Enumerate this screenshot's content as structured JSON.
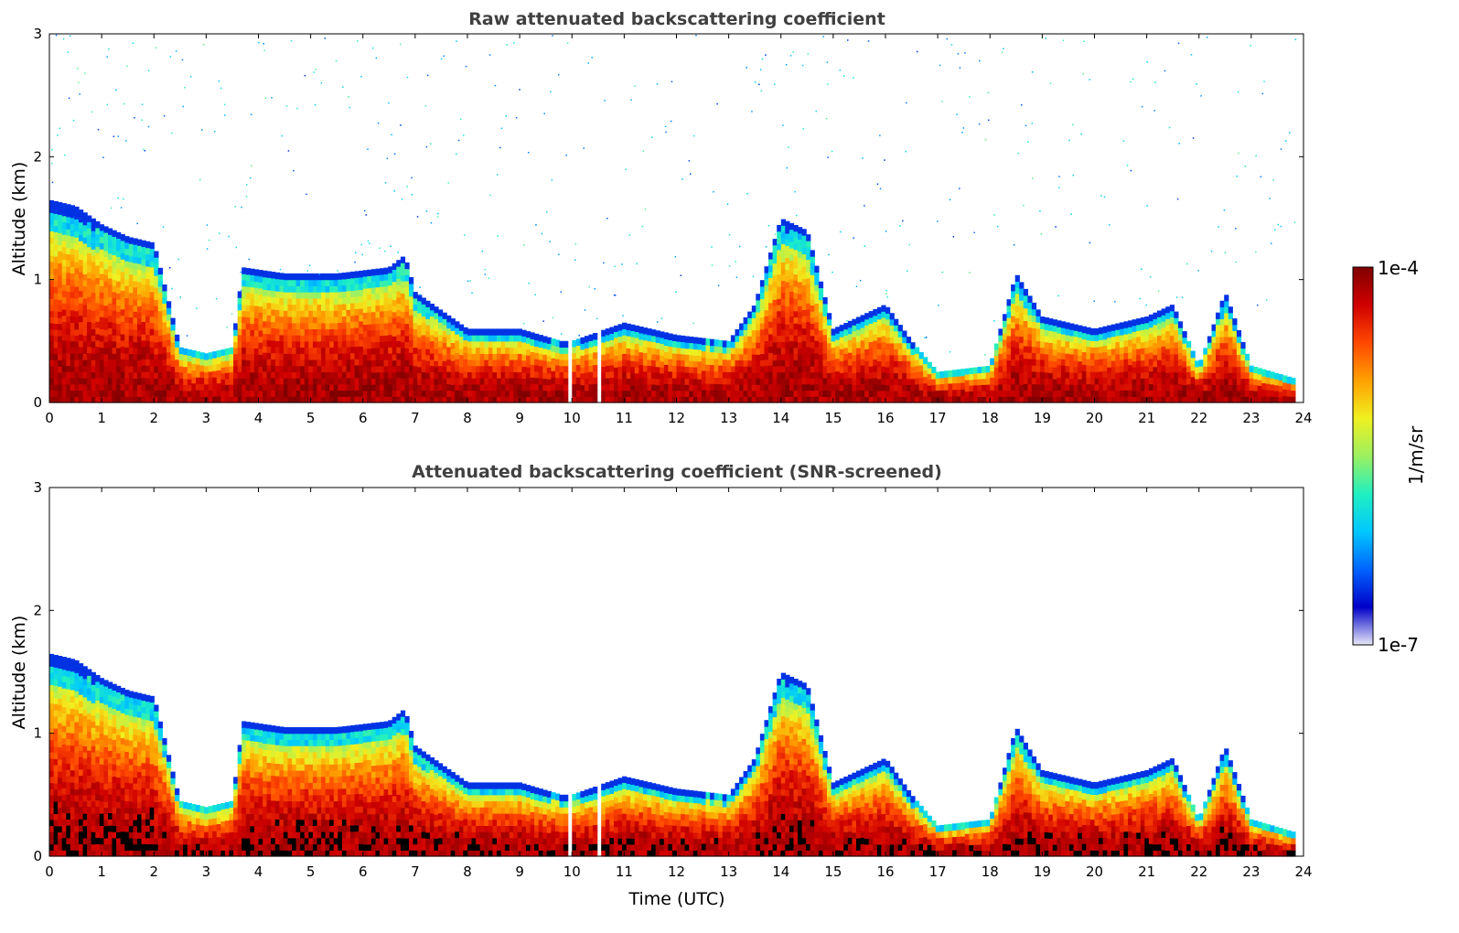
{
  "chart_data": [
    {
      "type": "heatmap",
      "title": "Raw attenuated backscattering coefficient",
      "xlabel": "",
      "ylabel": "Altitude (km)",
      "xlim": [
        0,
        24
      ],
      "ylim": [
        0,
        3
      ],
      "xticks": [
        0,
        1,
        2,
        3,
        4,
        5,
        6,
        7,
        8,
        9,
        10,
        11,
        12,
        13,
        14,
        15,
        16,
        17,
        18,
        19,
        20,
        21,
        22,
        23,
        24
      ],
      "yticks": [
        0,
        1,
        2,
        3
      ],
      "screened": false,
      "layer_tops_km": {
        "times": [
          0,
          0.5,
          1,
          1.5,
          2,
          2.5,
          3,
          3.5,
          3.7,
          4.5,
          5.5,
          6.5,
          6.8,
          7,
          8,
          9,
          9.8,
          10,
          11,
          12,
          13,
          13.5,
          14,
          14.5,
          15,
          15.5,
          16,
          16.5,
          17,
          18,
          18.5,
          19,
          20,
          21,
          21.5,
          22,
          22.5,
          23,
          23.8
        ],
        "tops": [
          1.65,
          1.6,
          1.45,
          1.35,
          1.3,
          0.45,
          0.4,
          0.45,
          1.1,
          1.05,
          1.05,
          1.1,
          1.2,
          0.9,
          0.6,
          0.6,
          0.5,
          0.5,
          0.65,
          0.55,
          0.5,
          0.8,
          1.5,
          1.4,
          0.6,
          0.7,
          0.8,
          0.5,
          0.25,
          0.3,
          1.05,
          0.7,
          0.6,
          0.7,
          0.8,
          0.3,
          0.9,
          0.3,
          0.2
        ]
      }
    },
    {
      "type": "heatmap",
      "title": "Attenuated backscattering coefficient (SNR-screened)",
      "xlabel": "Time (UTC)",
      "ylabel": "Altitude (km)",
      "xlim": [
        0,
        24
      ],
      "ylim": [
        0,
        3
      ],
      "xticks": [
        0,
        1,
        2,
        3,
        4,
        5,
        6,
        7,
        8,
        9,
        10,
        11,
        12,
        13,
        14,
        15,
        16,
        17,
        18,
        19,
        20,
        21,
        22,
        23,
        24
      ],
      "yticks": [
        0,
        1,
        2,
        3
      ],
      "screened": true
    }
  ],
  "colorbar": {
    "label": "1/m/sr",
    "max_label": "1e-4",
    "min_label": "1e-7",
    "colormap": [
      "#e8e8f8",
      "#0000c8",
      "#0064ff",
      "#00c8ff",
      "#20f0c0",
      "#9cf060",
      "#f0f020",
      "#ffa000",
      "#ff4800",
      "#d00000",
      "#800000"
    ]
  }
}
